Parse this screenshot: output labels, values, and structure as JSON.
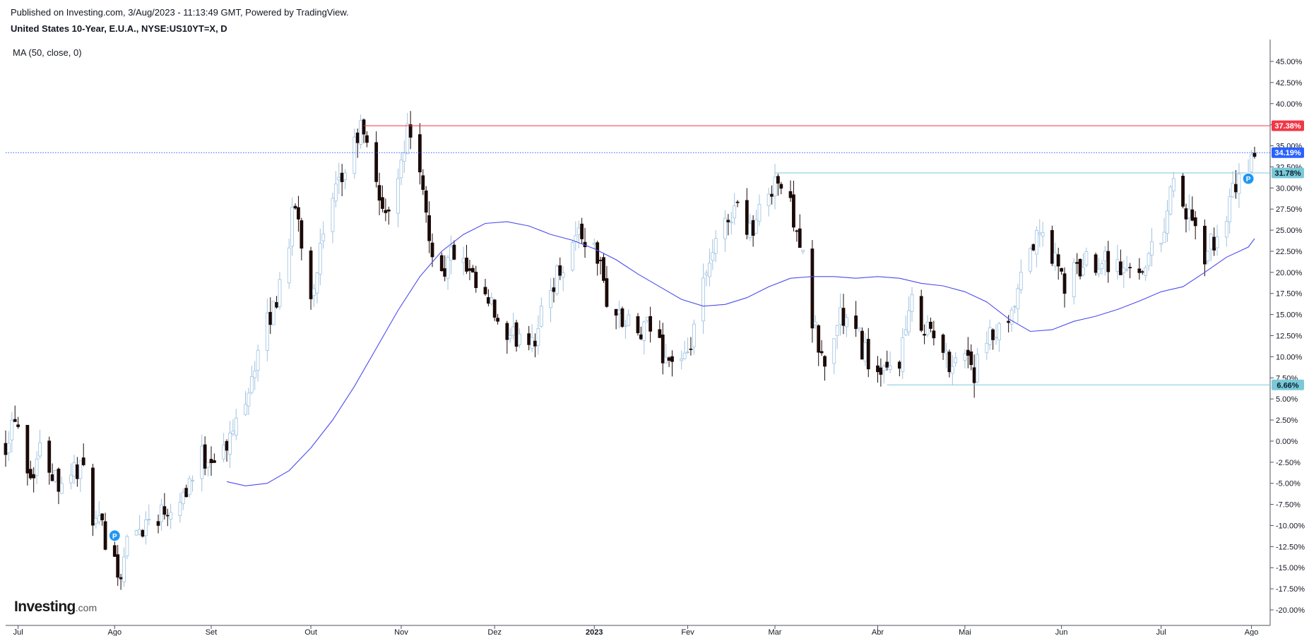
{
  "header": {
    "published": "Published on Investing.com, 3/Aug/2023 - 11:13:49 GMT, Powered by TradingView.",
    "symbol": "United States 10-Year, E.U.A., NYSE:US10YT=X, D",
    "indicator": "MA (50, close, 0)"
  },
  "logo": {
    "main": "Investing",
    "suffix": ".com"
  },
  "colors": {
    "bull_body": "#ffffff",
    "bull_wick": "#9ec2e0",
    "bear_body": "#1b0a08",
    "bear_wick": "#1b0a08",
    "ma_line": "#4b4bf0",
    "resistance": "#f23645",
    "support": "#7ac9d8",
    "current": "#2962ff"
  },
  "chart_data": {
    "type": "candlestick",
    "title": "United States 10-Year, E.U.A., NYSE:US10YT=X, D",
    "y_unit": "%",
    "ylim": [
      -21.5,
      47.5
    ],
    "y_ticks": [
      45,
      42.5,
      40,
      37.5,
      35,
      32.5,
      30,
      27.5,
      25,
      22.5,
      20,
      17.5,
      15,
      12.5,
      10,
      7.5,
      5,
      2.5,
      0,
      -2.5,
      -5,
      -7.5,
      -10,
      -12.5,
      -15,
      -17.5,
      -20
    ],
    "y_tick_labels": [
      "45.00%",
      "42.50%",
      "40.00%",
      "",
      "35.00%",
      "32.50%",
      "30.00%",
      "27.50%",
      "25.00%",
      "22.50%",
      "20.00%",
      "17.50%",
      "15.00%",
      "12.50%",
      "10.00%",
      "7.50%",
      "5.00%",
      "2.50%",
      "0.00%",
      "-2.50%",
      "-5.00%",
      "-7.50%",
      "-10.00%",
      "-12.50%",
      "-15.00%",
      "-17.50%",
      "-20.00%"
    ],
    "x_range": [
      "2022-06-27",
      "2023-08-07"
    ],
    "x_ticks": [
      {
        "date": "2022-07-01",
        "label": "Jul",
        "bold": false
      },
      {
        "date": "2022-08-01",
        "label": "Ago",
        "bold": false
      },
      {
        "date": "2022-09-01",
        "label": "Set",
        "bold": false
      },
      {
        "date": "2022-10-03",
        "label": "Out",
        "bold": false
      },
      {
        "date": "2022-11-01",
        "label": "Nov",
        "bold": false
      },
      {
        "date": "2022-12-01",
        "label": "Dez",
        "bold": false
      },
      {
        "date": "2023-01-02",
        "label": "2023",
        "bold": true
      },
      {
        "date": "2023-02-01",
        "label": "Fev",
        "bold": false
      },
      {
        "date": "2023-03-01",
        "label": "Mar",
        "bold": false
      },
      {
        "date": "2023-04-03",
        "label": "Abr",
        "bold": false
      },
      {
        "date": "2023-05-01",
        "label": "Mai",
        "bold": false
      },
      {
        "date": "2023-06-01",
        "label": "Jun",
        "bold": false
      },
      {
        "date": "2023-07-03",
        "label": "Jul",
        "bold": false
      },
      {
        "date": "2023-08-01",
        "label": "Ago",
        "bold": false
      }
    ],
    "price_path": [
      [
        "2022-06-27",
        0
      ],
      [
        "2022-06-30",
        3.5
      ],
      [
        "2022-07-05",
        -4
      ],
      [
        "2022-07-08",
        -1
      ],
      [
        "2022-07-14",
        -4.5
      ],
      [
        "2022-07-21",
        -3
      ],
      [
        "2022-07-26",
        -10
      ],
      [
        "2022-08-01",
        -12.5
      ],
      [
        "2022-08-02",
        -16.5
      ],
      [
        "2022-08-05",
        -12
      ],
      [
        "2022-08-11",
        -9.5
      ],
      [
        "2022-08-17",
        -8
      ],
      [
        "2022-08-23",
        -6
      ],
      [
        "2022-08-29",
        -2
      ],
      [
        "2022-09-06",
        -1
      ],
      [
        "2022-09-14",
        8
      ],
      [
        "2022-09-22",
        17
      ],
      [
        "2022-09-28",
        28
      ],
      [
        "2022-10-03",
        17.5
      ],
      [
        "2022-10-06",
        22.5
      ],
      [
        "2022-10-11",
        29
      ],
      [
        "2022-10-19",
        37
      ],
      [
        "2022-10-24",
        31
      ],
      [
        "2022-10-27",
        26
      ],
      [
        "2022-11-01",
        34
      ],
      [
        "2022-11-04",
        37.5
      ],
      [
        "2022-11-10",
        24
      ],
      [
        "2022-11-14",
        20
      ],
      [
        "2022-11-18",
        22.5
      ],
      [
        "2022-11-24",
        18.5
      ],
      [
        "2022-12-01",
        15
      ],
      [
        "2022-12-05",
        11
      ],
      [
        "2022-12-09",
        13
      ],
      [
        "2022-12-14",
        12.5
      ],
      [
        "2022-12-20",
        19
      ],
      [
        "2022-12-28",
        25
      ],
      [
        "2023-01-03",
        22
      ],
      [
        "2023-01-06",
        17
      ],
      [
        "2023-01-11",
        14
      ],
      [
        "2023-01-17",
        12.5
      ],
      [
        "2023-01-20",
        13.5
      ],
      [
        "2023-01-25",
        10
      ],
      [
        "2023-02-01",
        9
      ],
      [
        "2023-02-03",
        14
      ],
      [
        "2023-02-10",
        23
      ],
      [
        "2023-02-16",
        28
      ],
      [
        "2023-02-22",
        25
      ],
      [
        "2023-03-01",
        31.5
      ],
      [
        "2023-03-08",
        26
      ],
      [
        "2023-03-13",
        14
      ],
      [
        "2023-03-17",
        8.5
      ],
      [
        "2023-03-22",
        15
      ],
      [
        "2023-03-28",
        12
      ],
      [
        "2023-04-04",
        7
      ],
      [
        "2023-04-10",
        10
      ],
      [
        "2023-04-14",
        16
      ],
      [
        "2023-04-20",
        13
      ],
      [
        "2023-04-25",
        9.5
      ],
      [
        "2023-05-02",
        10.5
      ],
      [
        "2023-05-04",
        8
      ],
      [
        "2023-05-09",
        12
      ],
      [
        "2023-05-15",
        13
      ],
      [
        "2023-05-22",
        23
      ],
      [
        "2023-05-26",
        24.5
      ],
      [
        "2023-06-02",
        18.5
      ],
      [
        "2023-06-08",
        21
      ],
      [
        "2023-06-15",
        22
      ],
      [
        "2023-06-21",
        20
      ],
      [
        "2023-06-27",
        21
      ],
      [
        "2023-07-03",
        24
      ],
      [
        "2023-07-07",
        31.5
      ],
      [
        "2023-07-12",
        26
      ],
      [
        "2023-07-17",
        22
      ],
      [
        "2023-07-21",
        24
      ],
      [
        "2023-07-26",
        29
      ],
      [
        "2023-08-02",
        34.2
      ]
    ],
    "ma50": {
      "label": "MA (50, close, 0)",
      "points": [
        [
          "2022-09-06",
          -4.8
        ],
        [
          "2022-09-12",
          -5.3
        ],
        [
          "2022-09-19",
          -5
        ],
        [
          "2022-09-26",
          -3.5
        ],
        [
          "2022-10-03",
          -0.8
        ],
        [
          "2022-10-10",
          2.5
        ],
        [
          "2022-10-17",
          6.5
        ],
        [
          "2022-10-24",
          11
        ],
        [
          "2022-10-31",
          15.5
        ],
        [
          "2022-11-07",
          19.5
        ],
        [
          "2022-11-14",
          22.5
        ],
        [
          "2022-11-21",
          24.5
        ],
        [
          "2022-11-28",
          25.8
        ],
        [
          "2022-12-05",
          26
        ],
        [
          "2022-12-12",
          25.5
        ],
        [
          "2022-12-19",
          24.5
        ],
        [
          "2022-12-26",
          23.8
        ],
        [
          "2023-01-02",
          22.8
        ],
        [
          "2023-01-09",
          21.5
        ],
        [
          "2023-01-16",
          19.8
        ],
        [
          "2023-01-23",
          18.3
        ],
        [
          "2023-01-30",
          16.8
        ],
        [
          "2023-02-06",
          16
        ],
        [
          "2023-02-13",
          16.2
        ],
        [
          "2023-02-20",
          17
        ],
        [
          "2023-02-27",
          18.3
        ],
        [
          "2023-03-06",
          19.3
        ],
        [
          "2023-03-13",
          19.5
        ],
        [
          "2023-03-20",
          19.5
        ],
        [
          "2023-03-27",
          19.3
        ],
        [
          "2023-04-03",
          19.5
        ],
        [
          "2023-04-10",
          19.3
        ],
        [
          "2023-04-17",
          18.7
        ],
        [
          "2023-04-24",
          18.4
        ],
        [
          "2023-05-01",
          17.7
        ],
        [
          "2023-05-08",
          16.5
        ],
        [
          "2023-05-15",
          14.5
        ],
        [
          "2023-05-22",
          13
        ],
        [
          "2023-05-29",
          13.2
        ],
        [
          "2023-06-05",
          14.2
        ],
        [
          "2023-06-12",
          14.8
        ],
        [
          "2023-06-19",
          15.6
        ],
        [
          "2023-06-26",
          16.6
        ],
        [
          "2023-07-03",
          17.7
        ],
        [
          "2023-07-10",
          18.3
        ],
        [
          "2023-07-17",
          20
        ],
        [
          "2023-07-24",
          21.8
        ],
        [
          "2023-07-31",
          23
        ],
        [
          "2023-08-02",
          24
        ]
      ]
    },
    "levels": [
      {
        "name": "resistance",
        "value": 37.38,
        "label": "37.38%",
        "from": "2022-10-20",
        "style": "solid",
        "color": "#f23645"
      },
      {
        "name": "current",
        "value": 34.19,
        "label": "34.19%",
        "from": "2022-06-27",
        "style": "dotted",
        "color": "#2962ff"
      },
      {
        "name": "resistance-2",
        "value": 31.78,
        "label": "31.78%",
        "from": "2023-03-01",
        "style": "solid",
        "color": "#7ac9d8"
      },
      {
        "name": "support",
        "value": 6.66,
        "label": "6.66%",
        "from": "2023-04-06",
        "style": "solid",
        "color": "#7ac9d8"
      }
    ],
    "markers": [
      {
        "date": "2022-08-01",
        "value": -11.2,
        "text": "P"
      },
      {
        "date": "2023-07-31",
        "value": 31.1,
        "text": "P"
      }
    ]
  }
}
